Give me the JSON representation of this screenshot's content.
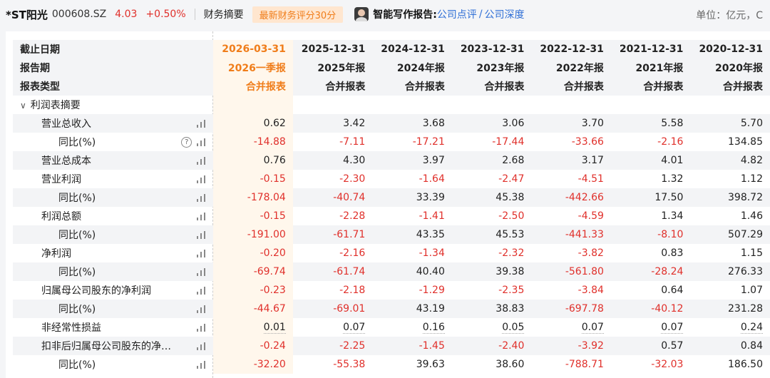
{
  "header": {
    "stock_name": "*ST阳光",
    "stock_code": "000608.SZ",
    "price": "4.03",
    "change": "+0.50%",
    "financial_summary": "财务摘要",
    "score_badge": "最新财务评分30分",
    "report_label": "智能写作报告:",
    "link_review": "公司点评",
    "link_sep": "/",
    "link_depth": "公司深度",
    "unit": "单位：亿元，C"
  },
  "table": {
    "header_rows": [
      {
        "label": "截止日期",
        "values": [
          "2026-03-31",
          "2025-12-31",
          "2024-12-31",
          "2023-12-31",
          "2022-12-31",
          "2021-12-31",
          "2020-12-31"
        ]
      },
      {
        "label": "报告期",
        "values": [
          "2026一季报",
          "2025年报",
          "2024年报",
          "2023年报",
          "2022年报",
          "2021年报",
          "2020年报"
        ]
      },
      {
        "label": "报表类型",
        "values": [
          "合并报表",
          "合并报表",
          "合并报表",
          "合并报表",
          "合并报表",
          "合并报表",
          "合并报表"
        ]
      }
    ],
    "section_label": "利润表摘要",
    "rows": [
      {
        "label": "营业总收入",
        "indent": 1,
        "help": false,
        "values": [
          "0.62",
          "3.42",
          "3.68",
          "3.06",
          "3.70",
          "5.58",
          "5.70"
        ],
        "neg": [
          false,
          false,
          false,
          false,
          false,
          false,
          false
        ],
        "dotted": false
      },
      {
        "label": "同比(%)",
        "indent": 2,
        "help": true,
        "values": [
          "-14.88",
          "-7.11",
          "-17.21",
          "-17.44",
          "-33.66",
          "-2.16",
          "134.85"
        ],
        "neg": [
          true,
          true,
          true,
          true,
          true,
          true,
          false
        ],
        "dotted": false
      },
      {
        "label": "营业总成本",
        "indent": 1,
        "help": false,
        "values": [
          "0.76",
          "4.30",
          "3.97",
          "2.68",
          "3.17",
          "4.01",
          "4.82"
        ],
        "neg": [
          false,
          false,
          false,
          false,
          false,
          false,
          false
        ],
        "dotted": false
      },
      {
        "label": "营业利润",
        "indent": 1,
        "help": false,
        "values": [
          "-0.15",
          "-2.30",
          "-1.64",
          "-2.47",
          "-4.51",
          "1.32",
          "1.12"
        ],
        "neg": [
          true,
          true,
          true,
          true,
          true,
          false,
          false
        ],
        "dotted": false
      },
      {
        "label": "同比(%)",
        "indent": 2,
        "help": false,
        "values": [
          "-178.04",
          "-40.74",
          "33.39",
          "45.38",
          "-442.66",
          "17.50",
          "398.72"
        ],
        "neg": [
          true,
          true,
          false,
          false,
          true,
          false,
          false
        ],
        "dotted": false
      },
      {
        "label": "利润总额",
        "indent": 1,
        "help": false,
        "values": [
          "-0.15",
          "-2.28",
          "-1.41",
          "-2.50",
          "-4.59",
          "1.34",
          "1.46"
        ],
        "neg": [
          true,
          true,
          true,
          true,
          true,
          false,
          false
        ],
        "dotted": false
      },
      {
        "label": "同比(%)",
        "indent": 2,
        "help": false,
        "values": [
          "-191.00",
          "-61.71",
          "43.35",
          "45.53",
          "-441.33",
          "-8.10",
          "507.29"
        ],
        "neg": [
          true,
          true,
          false,
          false,
          true,
          true,
          false
        ],
        "dotted": false
      },
      {
        "label": "净利润",
        "indent": 1,
        "help": false,
        "values": [
          "-0.20",
          "-2.16",
          "-1.34",
          "-2.32",
          "-3.82",
          "0.83",
          "1.15"
        ],
        "neg": [
          true,
          true,
          true,
          true,
          true,
          false,
          false
        ],
        "dotted": false
      },
      {
        "label": "同比(%)",
        "indent": 2,
        "help": false,
        "values": [
          "-69.74",
          "-61.74",
          "40.40",
          "39.38",
          "-561.80",
          "-28.24",
          "276.33"
        ],
        "neg": [
          true,
          true,
          false,
          false,
          true,
          true,
          false
        ],
        "dotted": false
      },
      {
        "label": "归属母公司股东的净利润",
        "indent": 1,
        "help": false,
        "values": [
          "-0.23",
          "-2.18",
          "-1.29",
          "-2.35",
          "-3.84",
          "0.64",
          "1.07"
        ],
        "neg": [
          true,
          true,
          true,
          true,
          true,
          false,
          false
        ],
        "dotted": false
      },
      {
        "label": "同比(%)",
        "indent": 2,
        "help": false,
        "values": [
          "-44.67",
          "-69.01",
          "43.19",
          "38.83",
          "-697.78",
          "-40.12",
          "231.28"
        ],
        "neg": [
          true,
          true,
          false,
          false,
          true,
          true,
          false
        ],
        "dotted": false
      },
      {
        "label": "非经常性损益",
        "indent": 1,
        "help": false,
        "values": [
          "0.01",
          "0.07",
          "0.16",
          "0.05",
          "0.07",
          "0.07",
          "0.24"
        ],
        "neg": [
          false,
          false,
          false,
          false,
          false,
          false,
          false
        ],
        "dotted": true
      },
      {
        "label": "扣非后归属母公司股东的净…",
        "indent": 1,
        "help": false,
        "values": [
          "-0.24",
          "-2.25",
          "-1.45",
          "-2.40",
          "-3.92",
          "0.57",
          "0.84"
        ],
        "neg": [
          true,
          true,
          true,
          true,
          true,
          false,
          false
        ],
        "dotted": false
      },
      {
        "label": "同比(%)",
        "indent": 2,
        "help": false,
        "values": [
          "-32.20",
          "-55.38",
          "39.63",
          "38.60",
          "-788.71",
          "-32.03",
          "186.50"
        ],
        "neg": [
          true,
          true,
          false,
          false,
          true,
          true,
          false
        ],
        "dotted": false
      }
    ]
  },
  "colors": {
    "negative": "#e0302b",
    "accent": "#f07d1a",
    "link": "#2f6fd6"
  },
  "icons": {
    "chart": "bar-chart-icon",
    "help": "help-icon",
    "collapse": "chevron-down-icon"
  }
}
